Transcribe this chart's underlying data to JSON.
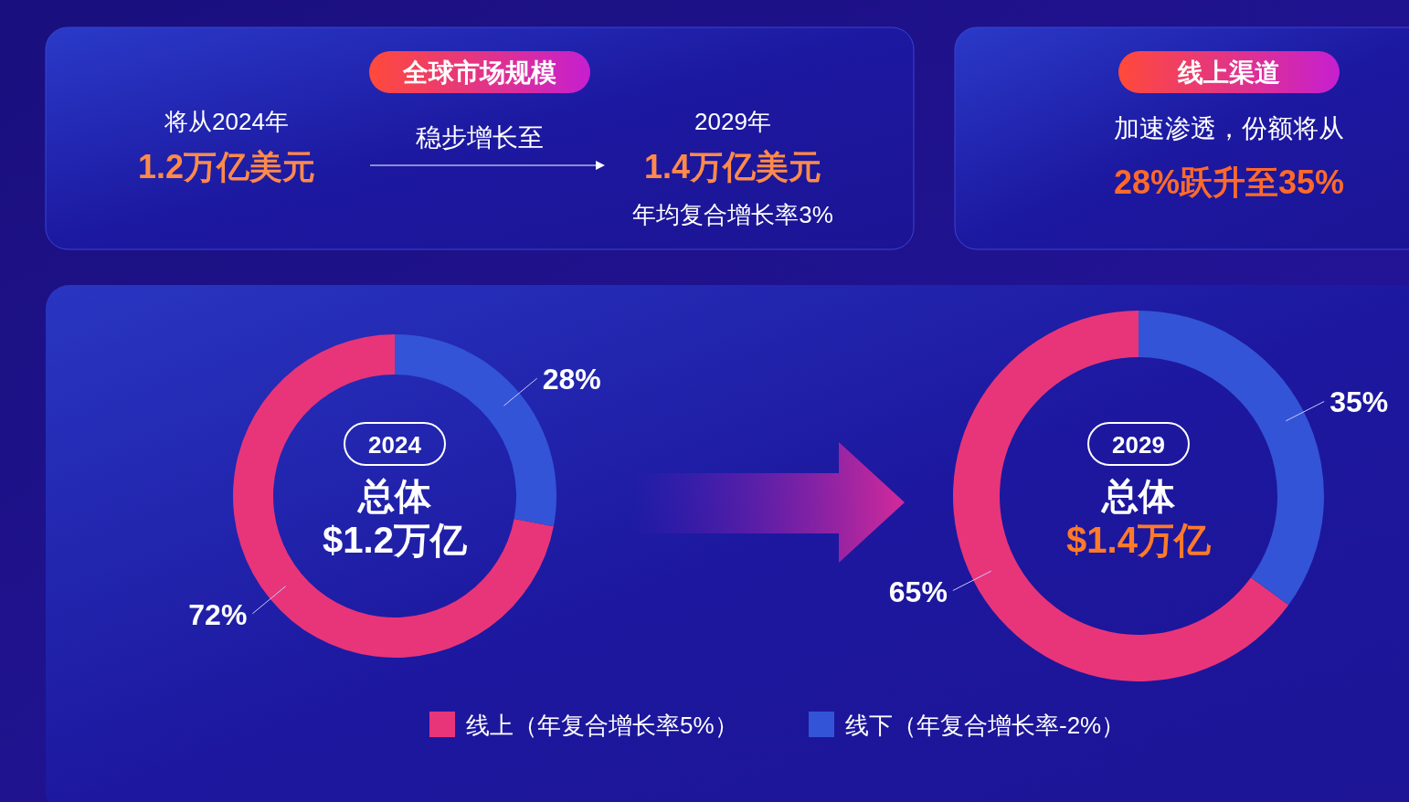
{
  "chart_data": [
    {
      "type": "other",
      "title": "全球市场规模",
      "annotations": [
        "将从2024年",
        "1.2万亿美元",
        "稳步增长至",
        "2029年",
        "1.4万亿美元",
        "年均复合增长率3%"
      ]
    },
    {
      "type": "other",
      "title": "线上渠道",
      "annotations": [
        "加速渗透，份额将从",
        "28%跃升至35%"
      ]
    },
    {
      "type": "donut",
      "values": [
        72,
        28
      ],
      "colors": [
        "#e8357a",
        "#3354d6"
      ],
      "value_labels": [
        "72%",
        "28%"
      ],
      "annotations": [
        "2024",
        "总体",
        "$1.2万亿"
      ]
    },
    {
      "type": "donut",
      "categories": [
        "线上（年复合增长率5%）",
        "线下（年复合增长率-2%）"
      ],
      "values": [
        65,
        35
      ],
      "colors": [
        "#e8357a",
        "#3354d6"
      ],
      "value_labels": [
        "65%",
        "35%"
      ],
      "annotations": [
        "2029",
        "总体",
        "$1.4万亿"
      ],
      "legend": "bottom"
    }
  ]
}
